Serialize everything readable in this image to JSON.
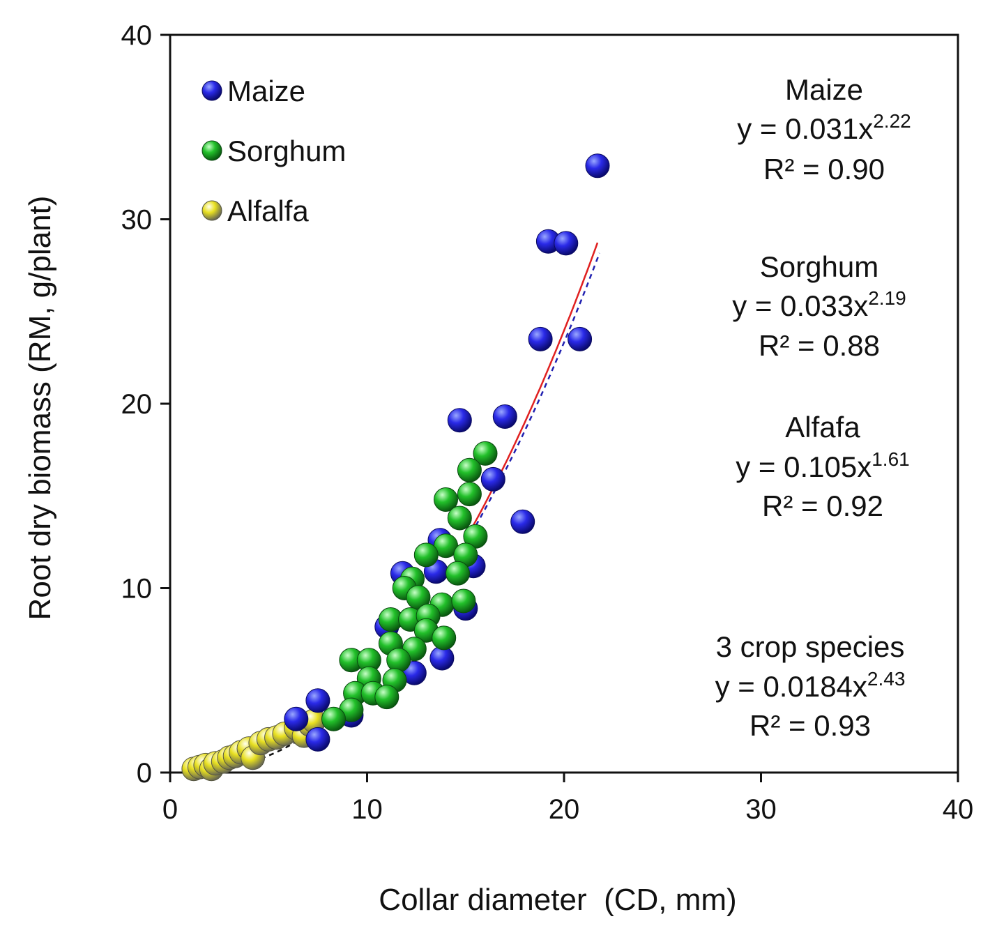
{
  "chart_data": {
    "type": "scatter",
    "xlabel": "Collar diameter  (CD, mm)",
    "ylabel": "Root dry biomass (RM, g/plant)",
    "xlim": [
      0,
      40
    ],
    "ylim": [
      0,
      40
    ],
    "xticks": [
      "0",
      "10",
      "20",
      "30",
      "40"
    ],
    "yticks": [
      "0",
      "10",
      "20",
      "30",
      "40"
    ],
    "grid": false,
    "legend_position": "top-left",
    "series": [
      {
        "name": "Maize",
        "color": "#1a1ae0",
        "points": [
          [
            21.7,
            32.9
          ],
          [
            19.2,
            28.8
          ],
          [
            20.1,
            28.7
          ],
          [
            18.8,
            23.5
          ],
          [
            20.8,
            23.5
          ],
          [
            14.7,
            19.1
          ],
          [
            17.0,
            19.3
          ],
          [
            16.4,
            15.9
          ],
          [
            17.9,
            13.6
          ],
          [
            15.4,
            11.2
          ],
          [
            11.8,
            10.8
          ],
          [
            13.7,
            12.6
          ],
          [
            13.5,
            10.9
          ],
          [
            15.0,
            8.9
          ],
          [
            11.0,
            7.9
          ],
          [
            13.8,
            6.2
          ],
          [
            12.4,
            5.4
          ],
          [
            7.5,
            3.9
          ],
          [
            6.4,
            2.9
          ],
          [
            7.5,
            1.8
          ],
          [
            9.2,
            3.1
          ]
        ]
      },
      {
        "name": "Sorghum",
        "color": "#22c02a",
        "points": [
          [
            16.0,
            17.3
          ],
          [
            15.2,
            16.4
          ],
          [
            14.0,
            14.8
          ],
          [
            15.2,
            15.1
          ],
          [
            14.7,
            13.8
          ],
          [
            15.5,
            12.8
          ],
          [
            14.0,
            12.3
          ],
          [
            13.0,
            11.8
          ],
          [
            15.0,
            11.8
          ],
          [
            14.6,
            10.8
          ],
          [
            12.3,
            10.5
          ],
          [
            11.9,
            10.0
          ],
          [
            12.6,
            9.5
          ],
          [
            13.8,
            9.1
          ],
          [
            14.9,
            9.3
          ],
          [
            11.2,
            8.3
          ],
          [
            12.2,
            8.3
          ],
          [
            13.1,
            8.5
          ],
          [
            13.0,
            7.7
          ],
          [
            13.9,
            7.3
          ],
          [
            11.2,
            7.0
          ],
          [
            12.4,
            6.7
          ],
          [
            11.6,
            6.1
          ],
          [
            9.2,
            6.1
          ],
          [
            10.1,
            6.1
          ],
          [
            10.1,
            5.1
          ],
          [
            11.4,
            5.0
          ],
          [
            9.4,
            4.3
          ],
          [
            10.3,
            4.3
          ],
          [
            11.0,
            4.1
          ],
          [
            9.2,
            3.4
          ],
          [
            8.3,
            2.9
          ]
        ]
      },
      {
        "name": "Alfalfa",
        "color": "#e8e020",
        "points": [
          [
            1.2,
            0.2
          ],
          [
            1.5,
            0.3
          ],
          [
            1.8,
            0.4
          ],
          [
            2.1,
            0.2
          ],
          [
            2.3,
            0.5
          ],
          [
            2.7,
            0.6
          ],
          [
            3.0,
            0.8
          ],
          [
            3.3,
            0.9
          ],
          [
            3.6,
            1.1
          ],
          [
            4.0,
            1.3
          ],
          [
            4.2,
            0.8
          ],
          [
            4.6,
            1.6
          ],
          [
            5.0,
            1.8
          ],
          [
            5.4,
            1.9
          ],
          [
            5.8,
            2.1
          ],
          [
            6.4,
            2.4
          ],
          [
            6.8,
            2.0
          ],
          [
            7.1,
            2.6
          ],
          [
            7.3,
            2.8
          ]
        ]
      }
    ],
    "fits": [
      {
        "name": "Maize",
        "a": 0.031,
        "b": 2.22,
        "x_range": [
          15.3,
          21.7
        ],
        "color": "#e02020",
        "style": "solid"
      },
      {
        "name": "Sorghum",
        "a": 0.033,
        "b": 2.19,
        "x_range": [
          15.3,
          21.8
        ],
        "color": "#2020b0",
        "style": "dashed"
      },
      {
        "name": "3 crop species",
        "a": 0.0184,
        "b": 2.43,
        "x_range": [
          1.0,
          8.0
        ],
        "color": "#111111",
        "style": "dashed"
      }
    ],
    "annotations": [
      {
        "title": "Maize",
        "eq_base": "y = 0.031x",
        "eq_exp": "2.22",
        "r2": "R² = 0.90"
      },
      {
        "title": "Sorghum",
        "eq_base": "y = 0.033x",
        "eq_exp": "2.19",
        "r2": "R² = 0.88"
      },
      {
        "title": "Alfafa",
        "eq_base": "y = 0.105x",
        "eq_exp": "1.61",
        "r2": "R² = 0.92"
      },
      {
        "title": "3 crop species",
        "eq_base": "y = 0.0184x",
        "eq_exp": "2.43",
        "r2": "R² = 0.93"
      }
    ]
  }
}
